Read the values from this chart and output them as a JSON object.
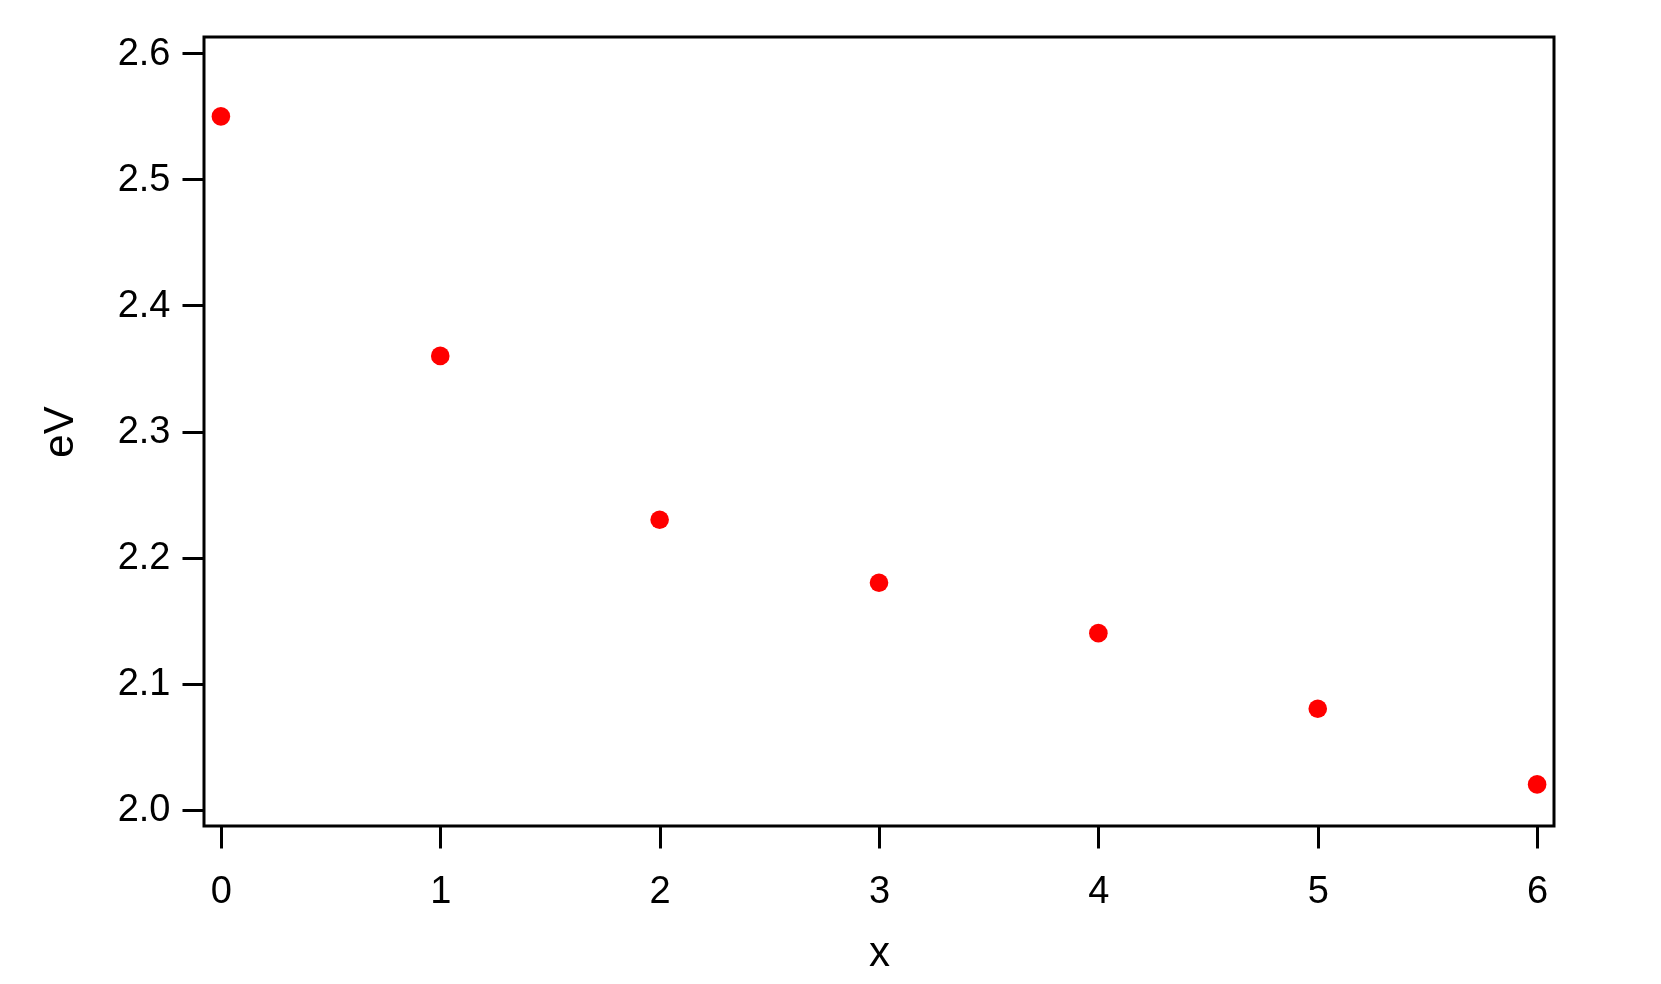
{
  "chart_data": {
    "type": "scatter",
    "xlabel": "x",
    "ylabel": "eV",
    "x": [
      0,
      1,
      2,
      3,
      4,
      5,
      6
    ],
    "series": [
      {
        "color": "#ff0000",
        "values": [
          2.55,
          2.36,
          2.23,
          2.18,
          2.14,
          2.08,
          2.02
        ]
      }
    ],
    "xlim": [
      -0.077,
      6.077
    ],
    "ylim": [
      1.987,
      2.613
    ],
    "xticks": [
      0,
      1,
      2,
      3,
      4,
      5,
      6
    ],
    "yticks": [
      {
        "value": 2,
        "label": "2.0"
      },
      2.1,
      2.2,
      2.3,
      2.4,
      2.5,
      2.6
    ],
    "grid": false,
    "marker": "circle"
  }
}
